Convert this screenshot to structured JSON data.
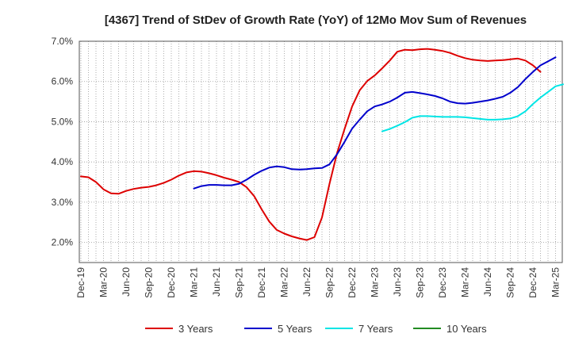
{
  "chart_data": {
    "type": "line",
    "title": "[4367]  Trend of StDev of Growth Rate (YoY) of 12Mo Mov Sum of Revenues",
    "xlabel": "",
    "ylabel": "",
    "ylim": [
      1.5,
      7.0
    ],
    "yticks": [
      2.0,
      3.0,
      4.0,
      5.0,
      6.0,
      7.0
    ],
    "ytick_labels": [
      "2.0%",
      "3.0%",
      "4.0%",
      "5.0%",
      "6.0%",
      "7.0%"
    ],
    "x_start_month": "Dec-19",
    "x_months_count": 64,
    "xtick_labels": [
      "Dec-19",
      "Mar-20",
      "Jun-20",
      "Sep-20",
      "Dec-20",
      "Mar-21",
      "Jun-21",
      "Sep-21",
      "Dec-21",
      "Mar-22",
      "Jun-22",
      "Sep-22",
      "Dec-22",
      "Mar-23",
      "Jun-23",
      "Sep-23",
      "Dec-23",
      "Mar-24",
      "Jun-24",
      "Sep-24",
      "Dec-24",
      "Mar-25"
    ],
    "grid": true,
    "legend_position": "bottom",
    "series": [
      {
        "name": "3 Years",
        "color": "#dd0000",
        "start_index": 0,
        "values": [
          3.64,
          3.62,
          3.5,
          3.32,
          3.22,
          3.21,
          3.28,
          3.33,
          3.36,
          3.38,
          3.42,
          3.48,
          3.56,
          3.66,
          3.74,
          3.77,
          3.76,
          3.72,
          3.67,
          3.61,
          3.56,
          3.5,
          3.37,
          3.15,
          2.82,
          2.52,
          2.31,
          2.22,
          2.15,
          2.1,
          2.06,
          2.13,
          2.62,
          3.46,
          4.22,
          4.82,
          5.38,
          5.78,
          6.01,
          6.15,
          6.33,
          6.52,
          6.74,
          6.79,
          6.78,
          6.8,
          6.81,
          6.79,
          6.76,
          6.71,
          6.64,
          6.58,
          6.54,
          6.52,
          6.51,
          6.52,
          6.53,
          6.55,
          6.57,
          6.52,
          6.4,
          6.24
        ]
      },
      {
        "name": "5 Years",
        "color": "#0000cc",
        "start_index": 15,
        "values": [
          3.34,
          3.4,
          3.43,
          3.43,
          3.42,
          3.42,
          3.46,
          3.56,
          3.68,
          3.78,
          3.86,
          3.89,
          3.87,
          3.82,
          3.81,
          3.82,
          3.84,
          3.85,
          3.94,
          4.19,
          4.5,
          4.83,
          5.05,
          5.26,
          5.38,
          5.43,
          5.5,
          5.6,
          5.72,
          5.74,
          5.71,
          5.68,
          5.64,
          5.58,
          5.5,
          5.46,
          5.45,
          5.47,
          5.5,
          5.53,
          5.57,
          5.62,
          5.72,
          5.86,
          6.06,
          6.24,
          6.4,
          6.5,
          6.6
        ]
      },
      {
        "name": "7 Years",
        "color": "#00e5e5",
        "start_index": 40,
        "values": [
          4.76,
          4.82,
          4.9,
          4.99,
          5.1,
          5.14,
          5.14,
          5.13,
          5.12,
          5.12,
          5.12,
          5.11,
          5.09,
          5.07,
          5.05,
          5.05,
          5.06,
          5.08,
          5.14,
          5.26,
          5.44,
          5.6,
          5.74,
          5.88,
          5.93
        ]
      },
      {
        "name": "10 Years",
        "color": "#228b22",
        "start_index": 0,
        "values": []
      }
    ]
  }
}
